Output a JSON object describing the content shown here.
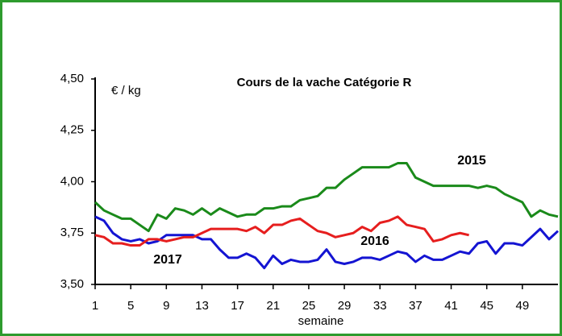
{
  "chart_data": {
    "type": "line",
    "title": "Cours de la vache Catégorie R",
    "y_unit": "€ / kg",
    "x_label": "semaine",
    "xlim": [
      1,
      53
    ],
    "xticks": [
      1,
      5,
      9,
      13,
      17,
      21,
      25,
      29,
      33,
      37,
      41,
      45,
      49
    ],
    "ylim": [
      3.5,
      4.5
    ],
    "yticks": [
      {
        "value": 3.5,
        "label": "3,50"
      },
      {
        "value": 3.75,
        "label": "3,75"
      },
      {
        "value": 4.0,
        "label": "4,00"
      },
      {
        "value": 4.25,
        "label": "4,25"
      },
      {
        "value": 4.5,
        "label": "4,50"
      }
    ],
    "grid": false,
    "series": [
      {
        "name": "2015",
        "color": "#1a8a1a",
        "x": [
          1,
          2,
          3,
          4,
          5,
          6,
          7,
          8,
          9,
          10,
          11,
          12,
          13,
          14,
          15,
          16,
          17,
          18,
          19,
          20,
          21,
          22,
          23,
          24,
          25,
          26,
          27,
          28,
          29,
          30,
          31,
          32,
          33,
          34,
          35,
          36,
          37,
          38,
          39,
          40,
          41,
          42,
          43,
          44,
          45,
          46,
          47,
          48,
          49,
          50,
          51,
          52,
          53
        ],
        "values": [
          3.9,
          3.86,
          3.84,
          3.82,
          3.82,
          3.79,
          3.76,
          3.84,
          3.82,
          3.87,
          3.86,
          3.84,
          3.87,
          3.84,
          3.87,
          3.85,
          3.83,
          3.84,
          3.84,
          3.87,
          3.87,
          3.88,
          3.88,
          3.91,
          3.92,
          3.93,
          3.97,
          3.97,
          4.01,
          4.04,
          4.07,
          4.07,
          4.07,
          4.07,
          4.09,
          4.09,
          4.02,
          4.0,
          3.98,
          3.98,
          3.98,
          3.98,
          3.98,
          3.97,
          3.98,
          3.97,
          3.94,
          3.92,
          3.9,
          3.83,
          3.86,
          3.84,
          3.83
        ]
      },
      {
        "name": "2016",
        "color": "#1414d2",
        "x": [
          1,
          2,
          3,
          4,
          5,
          6,
          7,
          8,
          9,
          10,
          11,
          12,
          13,
          14,
          15,
          16,
          17,
          18,
          19,
          20,
          21,
          22,
          23,
          24,
          25,
          26,
          27,
          28,
          29,
          30,
          31,
          32,
          33,
          34,
          35,
          36,
          37,
          38,
          39,
          40,
          41,
          42,
          43,
          44,
          45,
          46,
          47,
          48,
          49,
          50,
          51,
          52,
          53
        ],
        "values": [
          3.83,
          3.81,
          3.75,
          3.72,
          3.71,
          3.72,
          3.7,
          3.71,
          3.74,
          3.74,
          3.74,
          3.74,
          3.72,
          3.72,
          3.67,
          3.63,
          3.63,
          3.65,
          3.63,
          3.58,
          3.64,
          3.6,
          3.62,
          3.61,
          3.61,
          3.62,
          3.67,
          3.61,
          3.6,
          3.61,
          3.63,
          3.63,
          3.62,
          3.64,
          3.66,
          3.65,
          3.61,
          3.64,
          3.62,
          3.62,
          3.64,
          3.66,
          3.65,
          3.7,
          3.71,
          3.65,
          3.7,
          3.7,
          3.69,
          3.73,
          3.77,
          3.72,
          3.76
        ]
      },
      {
        "name": "2017",
        "color": "#e61e1e",
        "x": [
          1,
          2,
          3,
          4,
          5,
          6,
          7,
          8,
          9,
          10,
          11,
          12,
          13,
          14,
          15,
          16,
          17,
          18,
          19,
          20,
          21,
          22,
          23,
          24,
          25,
          26,
          27,
          28,
          29,
          30,
          31,
          32,
          33,
          34,
          35,
          36,
          37,
          38,
          39,
          40,
          41,
          42,
          43
        ],
        "values": [
          3.74,
          3.73,
          3.7,
          3.7,
          3.69,
          3.69,
          3.72,
          3.72,
          3.71,
          3.72,
          3.73,
          3.73,
          3.75,
          3.77,
          3.77,
          3.77,
          3.77,
          3.76,
          3.78,
          3.75,
          3.79,
          3.79,
          3.81,
          3.82,
          3.79,
          3.76,
          3.75,
          3.73,
          3.74,
          3.75,
          3.78,
          3.76,
          3.8,
          3.81,
          3.83,
          3.79,
          3.78,
          3.77,
          3.71,
          3.72,
          3.74,
          3.75,
          3.74
        ]
      }
    ]
  }
}
